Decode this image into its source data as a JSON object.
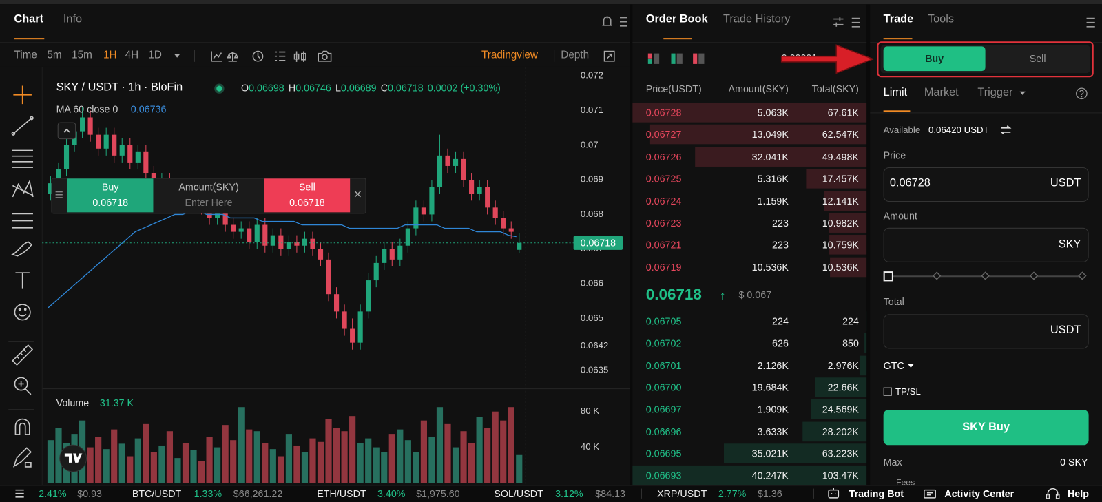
{
  "chart_panel": {
    "tabs": [
      "Chart",
      "Info"
    ],
    "intervals": [
      "Time",
      "5m",
      "15m",
      "1H",
      "4H",
      "1D"
    ],
    "views": [
      "Tradingview",
      "Depth"
    ]
  },
  "chart": {
    "symbol": "SKY / USDT · 1h · BloFin",
    "ohlc": [
      {
        "label": "O",
        "value": "0.06698"
      },
      {
        "label": "H",
        "value": "0.06746"
      },
      {
        "label": "L",
        "value": "0.06689"
      },
      {
        "label": "C",
        "value": "0.06718"
      }
    ],
    "change": "0.0002 (+0.30%)",
    "up_color": "#20a67b",
    "down_color": "#e0475b",
    "ylim": [
      0.06297,
      0.07226
    ],
    "yticks": [
      0.072,
      0.071,
      0.07,
      0.069,
      0.068,
      0.067,
      0.066,
      0.065,
      0.0642,
      0.0635
    ],
    "last_price": 0.06718,
    "candles": [
      [
        0.0686,
        0.0691,
        0.0684,
        0.0689
      ],
      [
        0.0689,
        0.0695,
        0.0687,
        0.0693
      ],
      [
        0.0693,
        0.0702,
        0.0691,
        0.07
      ],
      [
        0.07,
        0.0706,
        0.0698,
        0.0704
      ],
      [
        0.0704,
        0.0711,
        0.0702,
        0.0708
      ],
      [
        0.0708,
        0.071,
        0.0701,
        0.0703
      ],
      [
        0.0703,
        0.0705,
        0.0697,
        0.0699
      ],
      [
        0.0699,
        0.0705,
        0.0697,
        0.0703
      ],
      [
        0.0703,
        0.0705,
        0.0695,
        0.0697
      ],
      [
        0.0697,
        0.0702,
        0.0695,
        0.07
      ],
      [
        0.07,
        0.0702,
        0.0693,
        0.0695
      ],
      [
        0.0695,
        0.07,
        0.0693,
        0.0698
      ],
      [
        0.0698,
        0.07,
        0.069,
        0.0692
      ],
      [
        0.0692,
        0.0694,
        0.0687,
        0.0689
      ],
      [
        0.0689,
        0.0692,
        0.0687,
        0.069
      ],
      [
        0.069,
        0.0692,
        0.0684,
        0.0686
      ],
      [
        0.0686,
        0.069,
        0.0684,
        0.0688
      ],
      [
        0.0688,
        0.069,
        0.0682,
        0.0684
      ],
      [
        0.0684,
        0.0688,
        0.0682,
        0.0686
      ],
      [
        0.0686,
        0.0688,
        0.068,
        0.0682
      ],
      [
        0.0682,
        0.0684,
        0.0677,
        0.0679
      ],
      [
        0.0679,
        0.0683,
        0.0677,
        0.0681
      ],
      [
        0.0681,
        0.0683,
        0.0675,
        0.0677
      ],
      [
        0.0677,
        0.0679,
        0.0673,
        0.0675
      ],
      [
        0.0675,
        0.0678,
        0.0673,
        0.0676
      ],
      [
        0.0676,
        0.0678,
        0.067,
        0.0672
      ],
      [
        0.0672,
        0.0679,
        0.067,
        0.0677
      ],
      [
        0.0677,
        0.0679,
        0.0669,
        0.0671
      ],
      [
        0.0671,
        0.0676,
        0.0669,
        0.0674
      ],
      [
        0.0674,
        0.0676,
        0.0668,
        0.067
      ],
      [
        0.067,
        0.0674,
        0.0668,
        0.0672
      ],
      [
        0.0672,
        0.0674,
        0.0669,
        0.0671
      ],
      [
        0.0671,
        0.0675,
        0.0669,
        0.0673
      ],
      [
        0.0673,
        0.0675,
        0.0668,
        0.067
      ],
      [
        0.067,
        0.0672,
        0.0665,
        0.0667
      ],
      [
        0.0667,
        0.0669,
        0.0655,
        0.0657
      ],
      [
        0.0657,
        0.0659,
        0.065,
        0.0652
      ],
      [
        0.0652,
        0.0654,
        0.0645,
        0.0647
      ],
      [
        0.0647,
        0.065,
        0.0641,
        0.0643
      ],
      [
        0.0643,
        0.0654,
        0.0641,
        0.0652
      ],
      [
        0.0652,
        0.0663,
        0.065,
        0.0661
      ],
      [
        0.0661,
        0.0668,
        0.0659,
        0.0666
      ],
      [
        0.0666,
        0.0672,
        0.0664,
        0.067
      ],
      [
        0.067,
        0.0672,
        0.0665,
        0.0667
      ],
      [
        0.0667,
        0.0673,
        0.0665,
        0.0671
      ],
      [
        0.0671,
        0.0678,
        0.0669,
        0.0676
      ],
      [
        0.0676,
        0.0684,
        0.0674,
        0.0682
      ],
      [
        0.0682,
        0.0684,
        0.0678,
        0.068
      ],
      [
        0.068,
        0.069,
        0.0678,
        0.0688
      ],
      [
        0.0688,
        0.0703,
        0.0686,
        0.0697
      ],
      [
        0.0697,
        0.0699,
        0.0692,
        0.0694
      ],
      [
        0.0694,
        0.0698,
        0.0692,
        0.0696
      ],
      [
        0.0696,
        0.0698,
        0.0688,
        0.069
      ],
      [
        0.069,
        0.0692,
        0.0684,
        0.0686
      ],
      [
        0.0686,
        0.069,
        0.0684,
        0.0688
      ],
      [
        0.0688,
        0.069,
        0.068,
        0.0682
      ],
      [
        0.0682,
        0.0684,
        0.0677,
        0.0679
      ],
      [
        0.0679,
        0.0681,
        0.0674,
        0.0676
      ],
      [
        0.0676,
        0.0678,
        0.0673,
        0.0675
      ],
      [
        0.06698,
        0.06746,
        0.06689,
        0.06718
      ]
    ],
    "ma": {
      "label": "MA 60 close 0",
      "value": "0.06736",
      "color": "#2f86d6",
      "values": [
        0.0653,
        0.0655,
        0.0657,
        0.0659,
        0.0661,
        0.0663,
        0.0665,
        0.0667,
        0.0669,
        0.0671,
        0.0673,
        0.0675,
        0.0676,
        0.0677,
        0.0678,
        0.0679,
        0.068,
        0.068,
        0.0681,
        0.0681,
        0.068,
        0.068,
        0.068,
        0.0679,
        0.0679,
        0.0679,
        0.0679,
        0.0678,
        0.0678,
        0.0678,
        0.0678,
        0.0678,
        0.0677,
        0.0677,
        0.0677,
        0.0677,
        0.0677,
        0.0677,
        0.0676,
        0.0676,
        0.0676,
        0.0676,
        0.0676,
        0.0676,
        0.0676,
        0.0677,
        0.0677,
        0.0677,
        0.0677,
        0.0677,
        0.0676,
        0.0676,
        0.0676,
        0.0676,
        0.0675,
        0.0675,
        0.0675,
        0.0675,
        0.0674,
        0.06736
      ]
    },
    "volume": {
      "label": "Volume",
      "value": "31.37 K",
      "up_color": "#27705f",
      "down_color": "#93363f",
      "ylim": [
        0,
        100
      ],
      "yticks": [
        {
          "value": 80,
          "label": "80 K"
        },
        {
          "value": 40,
          "label": "40 K"
        }
      ],
      "values": [
        48,
        62,
        45,
        55,
        70,
        40,
        52,
        38,
        60,
        44,
        30,
        50,
        66,
        35,
        42,
        58,
        28,
        45,
        37,
        25,
        52,
        40,
        65,
        48,
        85,
        60,
        58,
        45,
        38,
        30,
        55,
        42,
        35,
        50,
        46,
        72,
        62,
        58,
        75,
        45,
        50,
        40,
        35,
        55,
        60,
        48,
        35,
        70,
        52,
        85,
        66,
        40,
        58,
        45,
        74,
        62,
        80,
        70,
        85,
        31.37
      ]
    }
  },
  "quick_trade": {
    "buy": "Buy",
    "buy_price": "0.06718",
    "amount": "Amount(SKY)",
    "placeholder": "Enter Here",
    "sell": "Sell",
    "sell_price": "0.06718"
  },
  "order_book": {
    "tabs": [
      "Order Book",
      "Trade History"
    ],
    "tick_size": "0.00001",
    "headers": [
      "Price(USDT)",
      "Amount(SKY)",
      "Total(SKY)"
    ],
    "asks": [
      {
        "price": "0.06728",
        "amount": "5.063K",
        "total": {
          "value": 67610,
          "label": "67.61K"
        }
      },
      {
        "price": "0.06727",
        "amount": "13.049K",
        "total": {
          "value": 62547,
          "label": "62.547K"
        }
      },
      {
        "price": "0.06726",
        "amount": "32.041K",
        "total": {
          "value": 49498,
          "label": "49.498K"
        }
      },
      {
        "price": "0.06725",
        "amount": "5.316K",
        "total": {
          "value": 17457,
          "label": "17.457K"
        }
      },
      {
        "price": "0.06724",
        "amount": "1.159K",
        "total": {
          "value": 12141,
          "label": "12.141K"
        }
      },
      {
        "price": "0.06723",
        "amount": "223",
        "total": {
          "value": 10982,
          "label": "10.982K"
        }
      },
      {
        "price": "0.06721",
        "amount": "223",
        "total": {
          "value": 10759,
          "label": "10.759K"
        }
      },
      {
        "price": "0.06719",
        "amount": "10.536K",
        "total": {
          "value": 10536,
          "label": "10.536K"
        }
      }
    ],
    "last_price": "0.06718",
    "last_arrow": "↑",
    "last_usd": "$ 0.067",
    "bids": [
      {
        "price": "0.06705",
        "amount": "224",
        "total": 224
      },
      {
        "price": "0.06702",
        "amount": "626",
        "total": 850
      },
      {
        "price": "0.06701",
        "amount": "2.126K",
        "total": {
          "value": 2976,
          "label": "2.976K"
        }
      },
      {
        "price": "0.06700",
        "amount": "19.684K",
        "total": {
          "value": 22660,
          "label": "22.66K"
        }
      },
      {
        "price": "0.06697",
        "amount": "1.909K",
        "total": {
          "value": 24569,
          "label": "24.569K"
        }
      },
      {
        "price": "0.06696",
        "amount": "3.633K",
        "total": {
          "value": 28202,
          "label": "28.202K"
        }
      },
      {
        "price": "0.06695",
        "amount": "35.021K",
        "total": {
          "value": 63223,
          "label": "63.223K"
        }
      },
      {
        "price": "0.06693",
        "amount": "40.247K",
        "total": {
          "value": 103470,
          "label": "103.47K"
        }
      }
    ]
  },
  "trade": {
    "tabs": [
      "Trade",
      "Tools"
    ],
    "sides": [
      "Buy",
      "Sell"
    ],
    "order_types": [
      "Limit",
      "Market",
      "Trigger"
    ],
    "available_label": "Available",
    "available_value": "0.06420 USDT",
    "price_label": "Price",
    "price_value": "0.06728",
    "price_unit": "USDT",
    "amount_label": "Amount",
    "amount_unit": "SKY",
    "total_label": "Total",
    "total_unit": "USDT",
    "tif": "GTC",
    "tpsl": "TP/SL",
    "submit": "SKY Buy",
    "max_label": "Max",
    "max_value": "0 SKY",
    "fees": "Fees"
  },
  "ticker": [
    {
      "change": "2.41%",
      "price": "$0.93"
    },
    {
      "pair": "BTC/USDT",
      "change": "1.33%",
      "price": "$66,261.22"
    },
    {
      "pair": "ETH/USDT",
      "change": "3.40%",
      "price": "$1,975.60"
    },
    {
      "pair": "SOL/USDT",
      "change": "3.12%",
      "price": "$84.13"
    },
    {
      "pair": "XRP/USDT",
      "change": "2.77%",
      "price": "$1.36"
    }
  ],
  "footer": [
    "Trading Bot",
    "Activity Center",
    "Help"
  ]
}
